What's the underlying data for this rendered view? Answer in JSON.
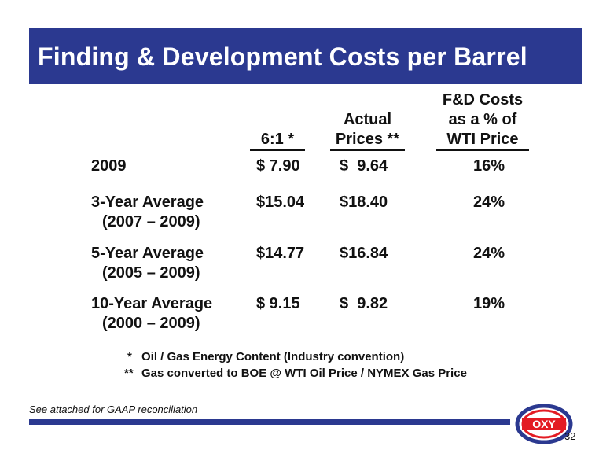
{
  "slide": {
    "title": "Finding & Development Costs per Barrel",
    "page_number": "32",
    "gaap_note": "See attached for GAAP reconciliation",
    "logo_text": "OXY"
  },
  "table": {
    "headers": {
      "col1": [
        "6:1 *"
      ],
      "col2": [
        "Actual",
        "Prices **"
      ],
      "col3": [
        "F&D Costs",
        "as a % of",
        "WTI Price"
      ]
    },
    "rows": [
      {
        "label": "2009",
        "sub": "",
        "col1": "$ 7.90",
        "col2": "$  9.64",
        "col3": "16%"
      },
      {
        "label": "3-Year Average",
        "sub": "(2007 – 2009)",
        "col1": "$15.04",
        "col2": "$18.40",
        "col3": "24%"
      },
      {
        "label": "5-Year Average",
        "sub": "(2005 – 2009)",
        "col1": "$14.77",
        "col2": "$16.84",
        "col3": "24%"
      },
      {
        "label": "10-Year Average",
        "sub": "(2000 – 2009)",
        "col1": "$ 9.15",
        "col2": "$  9.82",
        "col3": "19%"
      }
    ]
  },
  "footnotes": [
    {
      "marker": "*",
      "text": "Oil / Gas Energy Content (Industry convention)"
    },
    {
      "marker": "**",
      "text": "Gas converted to BOE @ WTI Oil Price / NYMEX Gas Price"
    }
  ],
  "colors": {
    "brand_blue": "#2b3990",
    "logo_red": "#e31b23"
  }
}
